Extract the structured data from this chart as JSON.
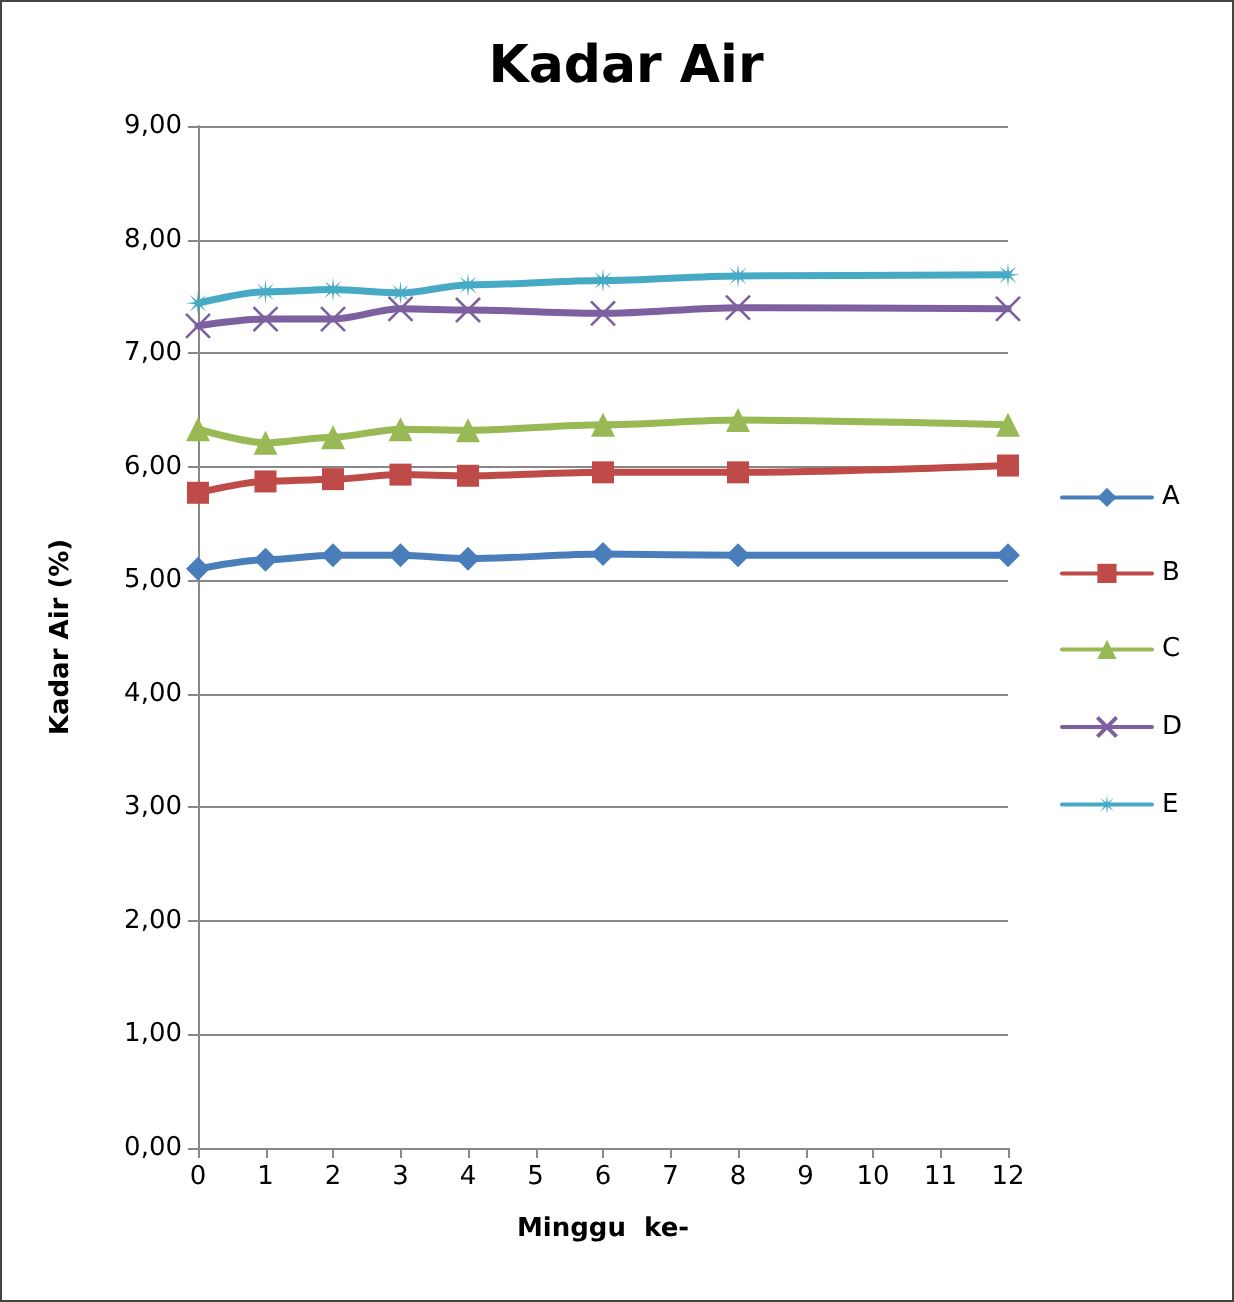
{
  "chart_data": {
    "type": "line",
    "title": "Kadar Air",
    "xlabel": "Minggu  ke-",
    "ylabel": "Kadar Air (%)",
    "x": [
      0,
      1,
      2,
      3,
      4,
      6,
      8,
      12
    ],
    "series": [
      {
        "name": "A",
        "color": "#4a7ebb",
        "marker": "diamond",
        "values": [
          5.1,
          5.18,
          5.22,
          5.22,
          5.19,
          5.23,
          5.22,
          5.22
        ]
      },
      {
        "name": "B",
        "color": "#be4b48",
        "marker": "square",
        "values": [
          5.77,
          5.87,
          5.89,
          5.93,
          5.92,
          5.95,
          5.95,
          6.01
        ]
      },
      {
        "name": "C",
        "color": "#98b954",
        "marker": "triangle",
        "values": [
          6.33,
          6.21,
          6.26,
          6.33,
          6.32,
          6.37,
          6.41,
          6.37
        ]
      },
      {
        "name": "D",
        "color": "#7d60a0",
        "marker": "cross",
        "values": [
          7.24,
          7.3,
          7.3,
          7.39,
          7.38,
          7.35,
          7.4,
          7.39
        ]
      },
      {
        "name": "E",
        "color": "#46aac5",
        "marker": "star",
        "values": [
          7.44,
          7.54,
          7.56,
          7.53,
          7.6,
          7.64,
          7.68,
          7.69
        ]
      }
    ],
    "xlim": [
      0,
      12
    ],
    "xticks": [
      0,
      1,
      2,
      3,
      4,
      5,
      6,
      7,
      8,
      9,
      10,
      11,
      12
    ],
    "ylim": [
      0,
      9
    ],
    "yticks": [
      {
        "value": 0,
        "label": "0,00"
      },
      {
        "value": 1,
        "label": "1,00"
      },
      {
        "value": 2,
        "label": "2,00"
      },
      {
        "value": 3,
        "label": "3,00"
      },
      {
        "value": 4,
        "label": "4,00"
      },
      {
        "value": 5,
        "label": "5,00"
      },
      {
        "value": 6,
        "label": "6,00"
      },
      {
        "value": 7,
        "label": "7,00"
      },
      {
        "value": 8,
        "label": "8,00"
      },
      {
        "value": 9,
        "label": "9,00"
      }
    ],
    "grid": "y",
    "legend": "right",
    "line_style": "solid"
  }
}
